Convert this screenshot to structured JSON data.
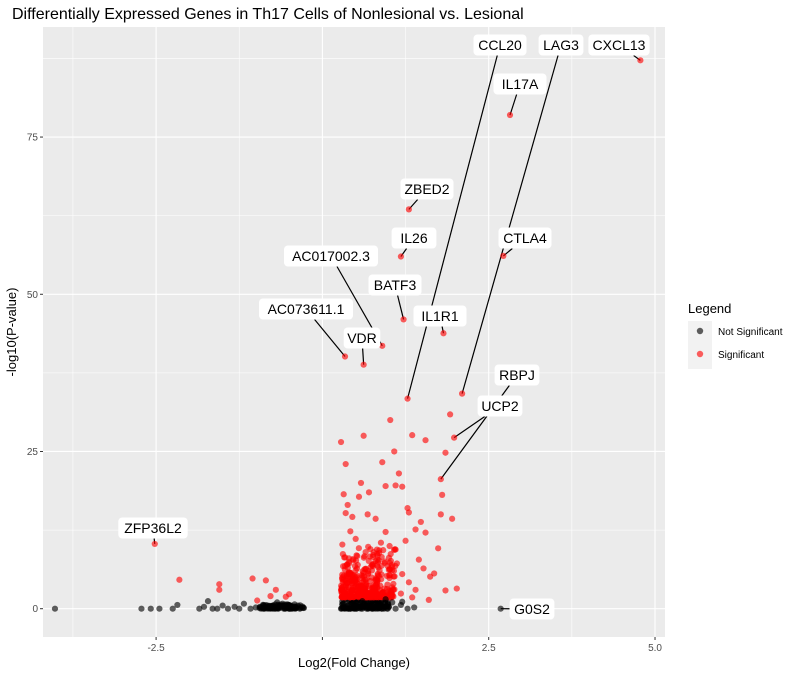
{
  "chart_data": {
    "type": "scatter",
    "title": "Differentially Expressed Genes in Th17 Cells of Nonlesional vs. Lesional",
    "xlabel": "Log2(Fold Change)",
    "ylabel": "-log10(P-value)",
    "xlim": [
      -4.2,
      5.15
    ],
    "ylim": [
      -4.5,
      92.5
    ],
    "x_ticks": [
      -2.5,
      0,
      2.5,
      5.0
    ],
    "x_tick_labels": [
      "-2.5",
      "",
      "2.5",
      "5.0"
    ],
    "y_ticks": [
      0,
      25,
      50,
      75
    ],
    "y_tick_labels": [
      "0",
      "25",
      "50",
      "75"
    ],
    "grid": true,
    "legend": {
      "title": "Legend",
      "position": "right",
      "entries": [
        {
          "label": "Not Significant",
          "color": "#000000"
        },
        {
          "label": "Significant",
          "color": "#ff0000"
        }
      ]
    },
    "colors": {
      "not_significant": "#000000",
      "significant": "#ff0000",
      "panel": "#ebebeb"
    },
    "labeled_points": [
      {
        "gene": "CXCL13",
        "x": 4.78,
        "y": 87.2,
        "significant": true
      },
      {
        "gene": "IL17A",
        "x": 2.82,
        "y": 78.5,
        "significant": true
      },
      {
        "gene": "ZBED2",
        "x": 1.3,
        "y": 63.5,
        "significant": true
      },
      {
        "gene": "CTLA4",
        "x": 2.72,
        "y": 56.1,
        "significant": true
      },
      {
        "gene": "IL26",
        "x": 1.18,
        "y": 56.0,
        "significant": true
      },
      {
        "gene": "BATF3",
        "x": 1.22,
        "y": 46.0,
        "significant": true
      },
      {
        "gene": "IL1R1",
        "x": 1.82,
        "y": 43.8,
        "significant": true
      },
      {
        "gene": "AC017002.3",
        "x": 0.9,
        "y": 41.8,
        "significant": true
      },
      {
        "gene": "AC073611.1",
        "x": 0.34,
        "y": 40.1,
        "significant": true
      },
      {
        "gene": "VDR",
        "x": 0.62,
        "y": 38.8,
        "significant": true
      },
      {
        "gene": "LAG3",
        "x": 2.1,
        "y": 34.2,
        "significant": true
      },
      {
        "gene": "CCL20",
        "x": 1.28,
        "y": 33.4,
        "significant": true
      },
      {
        "gene": "UCP2",
        "x": 1.98,
        "y": 27.2,
        "significant": true
      },
      {
        "gene": "RBPJ",
        "x": 1.78,
        "y": 20.6,
        "significant": true
      },
      {
        "gene": "ZFP36L2",
        "x": -2.52,
        "y": 10.3,
        "significant": true
      },
      {
        "gene": "G0S2",
        "x": 2.68,
        "y": 0.0,
        "significant": false
      }
    ],
    "significant_points": [
      [
        -2.15,
        4.6
      ],
      [
        -1.55,
        3.9
      ],
      [
        -1.55,
        3.0
      ],
      [
        -1.05,
        4.8
      ],
      [
        -0.85,
        4.5
      ],
      [
        -0.7,
        3.0
      ],
      [
        -0.55,
        1.9
      ],
      [
        -0.5,
        2.3
      ],
      [
        -0.78,
        2.0
      ],
      [
        -0.98,
        1.3
      ],
      [
        0.28,
        26.5
      ],
      [
        0.35,
        23.0
      ],
      [
        0.32,
        18.2
      ],
      [
        0.38,
        16.5
      ],
      [
        0.35,
        15.2
      ],
      [
        0.42,
        12.3
      ],
      [
        0.45,
        14.6
      ],
      [
        0.3,
        10.2
      ],
      [
        0.5,
        11.1
      ],
      [
        0.62,
        27.5
      ],
      [
        0.58,
        20.0
      ],
      [
        0.55,
        17.8
      ],
      [
        0.7,
        18.5
      ],
      [
        0.68,
        15.0
      ],
      [
        0.8,
        14.3
      ],
      [
        0.9,
        23.3
      ],
      [
        0.95,
        19.5
      ],
      [
        1.02,
        30.0
      ],
      [
        1.08,
        25.0
      ],
      [
        1.1,
        19.6
      ],
      [
        1.15,
        21.5
      ],
      [
        1.2,
        19.4
      ],
      [
        1.25,
        10.8
      ],
      [
        1.28,
        16.0
      ],
      [
        1.3,
        15.3
      ],
      [
        1.35,
        27.6
      ],
      [
        1.4,
        12.6
      ],
      [
        1.48,
        13.8
      ],
      [
        1.55,
        26.8
      ],
      [
        1.62,
        5.1
      ],
      [
        1.68,
        5.6
      ],
      [
        1.74,
        9.6
      ],
      [
        1.78,
        15.0
      ],
      [
        1.8,
        18.1
      ],
      [
        1.85,
        24.8
      ],
      [
        1.92,
        30.9
      ],
      [
        1.95,
        14.3
      ],
      [
        1.55,
        12.1
      ],
      [
        1.45,
        7.8
      ],
      [
        0.75,
        7.0
      ],
      [
        0.85,
        5.2
      ],
      [
        1.0,
        8.1
      ],
      [
        1.1,
        9.4
      ],
      [
        1.2,
        5.5
      ],
      [
        1.3,
        4.2
      ],
      [
        1.4,
        3.0
      ],
      [
        1.52,
        6.4
      ],
      [
        0.95,
        12.2
      ],
      [
        0.65,
        9.0
      ],
      [
        0.4,
        8.0
      ],
      [
        0.5,
        6.1
      ],
      [
        0.3,
        5.0
      ],
      [
        0.45,
        3.0
      ],
      [
        0.6,
        4.2
      ],
      [
        0.72,
        2.5
      ],
      [
        1.05,
        3.4
      ],
      [
        1.18,
        2.4
      ],
      [
        1.35,
        1.8
      ],
      [
        1.6,
        1.4
      ],
      [
        1.85,
        2.9
      ],
      [
        2.02,
        3.2
      ],
      [
        0.88,
        10.5
      ],
      [
        0.82,
        9.4
      ],
      [
        0.98,
        6.8
      ],
      [
        1.12,
        7.2
      ]
    ],
    "not_significant_points": [
      [
        -4.02,
        0.0
      ],
      [
        -2.72,
        0.0
      ],
      [
        -2.58,
        0.0
      ],
      [
        -2.45,
        0.0
      ],
      [
        -2.25,
        0.0
      ],
      [
        -2.18,
        0.6
      ],
      [
        -1.85,
        0.0
      ],
      [
        -1.78,
        0.3
      ],
      [
        -1.72,
        1.2
      ],
      [
        -1.65,
        0.0
      ],
      [
        -1.58,
        0.0
      ],
      [
        -1.5,
        0.5
      ],
      [
        -1.42,
        0.0
      ],
      [
        -1.32,
        0.3
      ],
      [
        -1.25,
        0.0
      ],
      [
        -1.18,
        0.8
      ],
      [
        -1.08,
        0.0
      ],
      [
        -1.0,
        0.2
      ],
      [
        -0.92,
        0.0
      ],
      [
        -0.88,
        0.5
      ],
      [
        -0.82,
        0.0
      ],
      [
        -0.76,
        0.2
      ],
      [
        -0.7,
        0.0
      ],
      [
        -0.64,
        0.4
      ],
      [
        -0.58,
        0.0
      ],
      [
        -0.52,
        0.2
      ],
      [
        -0.46,
        0.0
      ],
      [
        -0.4,
        0.3
      ],
      [
        -0.34,
        0.0
      ],
      [
        -0.28,
        0.1
      ],
      [
        -0.6,
        0.8
      ],
      [
        -0.68,
        1.0
      ],
      [
        -0.5,
        0.6
      ],
      [
        0.28,
        0.0
      ],
      [
        0.35,
        0.3
      ],
      [
        0.42,
        0.0
      ],
      [
        0.5,
        0.5
      ],
      [
        0.58,
        0.0
      ],
      [
        0.66,
        0.2
      ],
      [
        0.74,
        0.0
      ],
      [
        0.82,
        0.4
      ],
      [
        0.9,
        0.0
      ],
      [
        1.0,
        0.3
      ],
      [
        1.1,
        0.0
      ],
      [
        1.18,
        0.6
      ],
      [
        1.28,
        0.0
      ],
      [
        1.38,
        0.2
      ],
      [
        0.95,
        1.5
      ],
      [
        1.05,
        1.0
      ],
      [
        0.88,
        0.9
      ],
      [
        1.2,
        1.1
      ],
      [
        0.6,
        1.2
      ],
      [
        0.45,
        0.9
      ]
    ],
    "dense_clusters": [
      {
        "x_range": [
          -0.95,
          -0.28
        ],
        "y_range": [
          0.0,
          0.7
        ],
        "count": 95,
        "significant": false
      },
      {
        "x_range": [
          0.28,
          1.0
        ],
        "y_range": [
          0.0,
          1.6
        ],
        "count": 130,
        "significant": false
      },
      {
        "x_range": [
          0.28,
          1.1
        ],
        "y_range": [
          1.8,
          10.0
        ],
        "count": 230,
        "significant": true
      },
      {
        "x_range": [
          0.28,
          0.85
        ],
        "y_range": [
          1.8,
          6.0
        ],
        "count": 140,
        "significant": true
      }
    ]
  }
}
